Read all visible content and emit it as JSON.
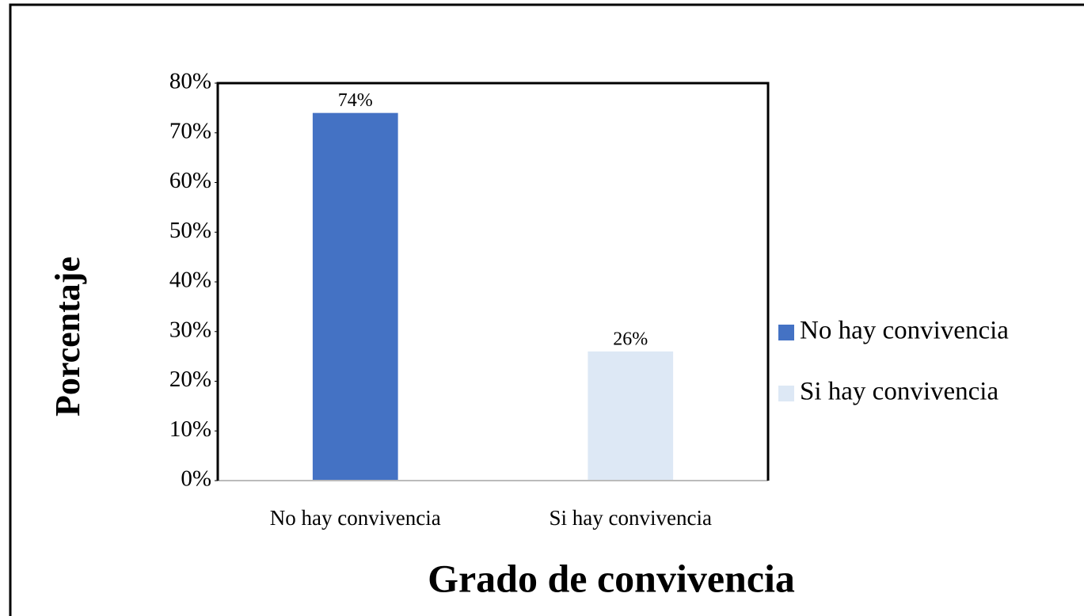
{
  "chart_data": {
    "type": "bar",
    "categories": [
      "No hay convivencia",
      "Si hay convivencia"
    ],
    "values": [
      74,
      26
    ],
    "value_labels": [
      "74%",
      "26%"
    ],
    "colors": [
      "#4472c4",
      "#dde8f5"
    ],
    "x_label": "Grado de convivencia",
    "y_label": "Porcentaje",
    "ylim": [
      0,
      80
    ],
    "yticks": [
      {
        "value": 0,
        "label": "0%"
      },
      {
        "value": 10,
        "label": "10%"
      },
      {
        "value": 20,
        "label": "20%"
      },
      {
        "value": 30,
        "label": "30%"
      },
      {
        "value": 40,
        "label": "40%"
      },
      {
        "value": 50,
        "label": "50%"
      },
      {
        "value": 60,
        "label": "60%"
      },
      {
        "value": 70,
        "label": "70%"
      },
      {
        "value": 80,
        "label": "80%"
      }
    ],
    "legend": "right"
  }
}
